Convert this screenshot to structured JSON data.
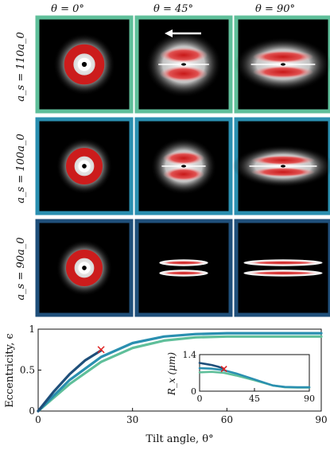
{
  "columns": [
    {
      "label": "θ = 0°"
    },
    {
      "label": "θ = 45°"
    },
    {
      "label": "θ = 90°"
    }
  ],
  "rows": [
    {
      "label": "a_s = 110a_0",
      "border_color": "#5fbf9a"
    },
    {
      "label": "a_s = 100a_0",
      "border_color": "#2a8fb0"
    },
    {
      "label": "a_s = 90a_0",
      "border_color": "#1f4f7a"
    }
  ],
  "panels": [
    {
      "row": 0,
      "col": 0,
      "shape": "ring",
      "rx": 0.22,
      "ry": 0.22,
      "arrow": false
    },
    {
      "row": 0,
      "col": 1,
      "shape": "split",
      "rx": 0.3,
      "ry": 0.22,
      "arrow": true
    },
    {
      "row": 0,
      "col": 2,
      "shape": "split",
      "rx": 0.38,
      "ry": 0.18,
      "arrow": false
    },
    {
      "row": 1,
      "col": 0,
      "shape": "ring",
      "rx": 0.2,
      "ry": 0.2,
      "arrow": false
    },
    {
      "row": 1,
      "col": 1,
      "shape": "split",
      "rx": 0.26,
      "ry": 0.19,
      "arrow": false
    },
    {
      "row": 1,
      "col": 2,
      "shape": "split",
      "rx": 0.4,
      "ry": 0.14,
      "arrow": false
    },
    {
      "row": 2,
      "col": 0,
      "shape": "ring",
      "rx": 0.2,
      "ry": 0.2,
      "arrow": false
    },
    {
      "row": 2,
      "col": 1,
      "shape": "bands",
      "rx": 0.26,
      "ry": 0.03,
      "arrow": false
    },
    {
      "row": 2,
      "col": 2,
      "shape": "bands",
      "rx": 0.42,
      "ry": 0.03,
      "arrow": false
    }
  ],
  "chart_data": [
    {
      "type": "line",
      "xlabel": "Tilt angle, θ°",
      "ylabel": "Eccentricity, ϵ",
      "xlim": [
        0,
        90
      ],
      "ylim": [
        0,
        1
      ],
      "xticks": [
        "0",
        "30",
        "60",
        "90"
      ],
      "yticks": [
        "0",
        "0.5",
        "1"
      ],
      "series": [
        {
          "color": "#5fbf9a",
          "x": [
            0,
            10,
            20,
            30,
            40,
            50,
            60,
            70,
            80,
            90
          ],
          "y": [
            0,
            0.33,
            0.6,
            0.77,
            0.86,
            0.9,
            0.91,
            0.91,
            0.91,
            0.91
          ]
        },
        {
          "color": "#2a8fb0",
          "x": [
            0,
            10,
            20,
            30,
            40,
            50,
            60,
            70,
            80,
            90
          ],
          "y": [
            0,
            0.38,
            0.66,
            0.83,
            0.91,
            0.94,
            0.95,
            0.95,
            0.95,
            0.95
          ]
        },
        {
          "color": "#1f4f7a",
          "x": [
            0,
            5,
            10,
            15,
            20
          ],
          "y": [
            0,
            0.24,
            0.45,
            0.62,
            0.74
          ]
        }
      ],
      "markers": [
        {
          "x": 20,
          "y": 0.75,
          "color": "#e02020",
          "symbol": "x"
        }
      ]
    },
    {
      "type": "line",
      "ylabel": "R_x (μm)",
      "xlim": [
        0,
        90
      ],
      "ylim": [
        0,
        1.4
      ],
      "xticks": [
        "0",
        "45",
        "90"
      ],
      "yticks": [
        "0",
        "1.4"
      ],
      "series": [
        {
          "color": "#5fbf9a",
          "x": [
            0,
            10,
            20,
            30,
            45,
            60,
            70,
            80,
            90
          ],
          "y": [
            0.72,
            0.74,
            0.7,
            0.6,
            0.42,
            0.22,
            0.15,
            0.14,
            0.14
          ]
        },
        {
          "color": "#2a8fb0",
          "x": [
            0,
            10,
            20,
            30,
            45,
            60,
            70,
            80,
            90
          ],
          "y": [
            0.88,
            0.86,
            0.8,
            0.68,
            0.45,
            0.22,
            0.16,
            0.15,
            0.15
          ]
        },
        {
          "color": "#1f4f7a",
          "x": [
            0,
            5,
            10,
            15,
            20
          ],
          "y": [
            1.08,
            1.04,
            1.0,
            0.94,
            0.86
          ]
        }
      ],
      "markers": [
        {
          "x": 20,
          "y": 0.85,
          "color": "#e02020",
          "symbol": "x"
        }
      ]
    }
  ]
}
